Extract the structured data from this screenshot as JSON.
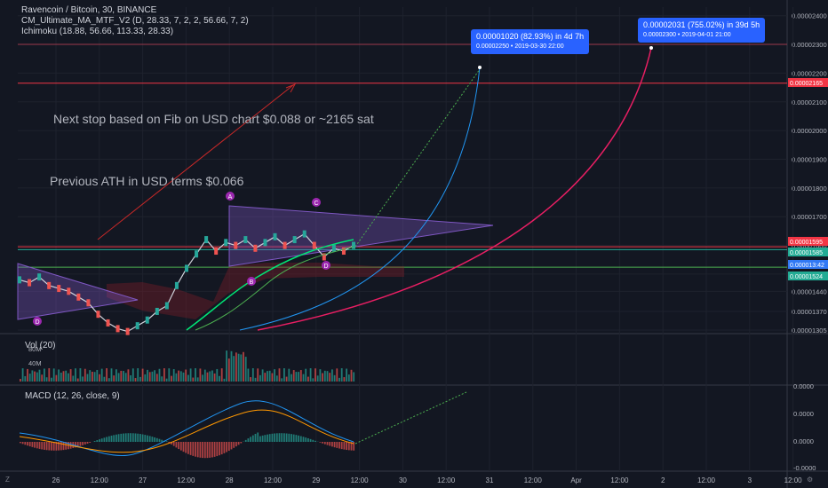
{
  "header": {
    "title": "Ravencoin / Bitcoin, 30, BINANCE",
    "indicator1": "CM_Ultimate_MA_MTF_V2 (D, 28.33, 7, 2, 2, 56.66, 7, 2)",
    "indicator2": "Ichimoku (18.88, 56.66, 113.33, 28.33)"
  },
  "annotations": {
    "next_stop": "Next stop based on Fib on USD chart $0.088 or ~2165 sat",
    "previous_ath": "Previous ATH in USD terms $0.066"
  },
  "pattern_points": [
    "A",
    "B",
    "C",
    "D",
    "D"
  ],
  "bubbles": [
    {
      "line1": "0.00001020 (82.93%) in 4d 7h",
      "line2": "0.00002250  •  2019-03-30  22:00"
    },
    {
      "line1": "0.00002031 (755.02%) in 39d 5h",
      "line2": "0.00002300  •  2019-04-01  21:00"
    }
  ],
  "price_tags": [
    {
      "text": "0.00002165",
      "color": "#f23645"
    },
    {
      "text": "0.00001595",
      "color": "#f23645"
    },
    {
      "text": "0.00001585",
      "color": "#22ab94"
    },
    {
      "text": "0.000013:42",
      "color": "#3179f5"
    },
    {
      "text": "0.00001524",
      "color": "#22ab94"
    }
  ],
  "vol_panel": {
    "label": "Vol (20)",
    "ticks": [
      "80M",
      "40M"
    ]
  },
  "macd_panel": {
    "label": "MACD (12, 26, close, 9)",
    "ticks": [
      "0.0000",
      "0.0000",
      "0.0000",
      "-0.0000"
    ]
  },
  "bottom_corner": {
    "left": "Z",
    "right": "⚙"
  },
  "chart_data": {
    "type": "line",
    "title": "Ravencoin / Bitcoin, 30, BINANCE",
    "y_axis_ticks": [
      "0.00002400",
      "0.00002300",
      "0.00002200",
      "0.00002100",
      "0.00002000",
      "0.00001900",
      "0.00001800",
      "0.00001700",
      "0.00001600",
      "0.00001500",
      "0.00001440",
      "0.00001370",
      "0.00001305"
    ],
    "x_axis_ticks": [
      "26",
      "12:00",
      "27",
      "12:00",
      "28",
      "12:00",
      "29",
      "12:00",
      "30",
      "12:00",
      "31",
      "12:00",
      "Apr",
      "12:00",
      "2",
      "12:00",
      "3",
      "12:00"
    ],
    "ylim": [
      1.305e-05,
      2.43e-05
    ],
    "series": [
      {
        "values": [
          1.48e-05,
          1.47e-05,
          1.49e-05,
          1.46e-05,
          1.45e-05,
          1.44e-05,
          1.42e-05,
          1.4e-05,
          1.36e-05,
          1.33e-05,
          1.31e-05,
          1.3e-05,
          1.32e-05,
          1.34e-05,
          1.37e-05,
          1.39e-05,
          1.46e-05,
          1.52e-05,
          1.57e-05,
          1.62e-05,
          1.58e-05,
          1.61e-05,
          1.6e-05,
          1.62e-05,
          1.59e-05,
          1.61e-05,
          1.63e-05,
          1.6e-05,
          1.62e-05,
          1.64e-05,
          1.6e-05,
          1.56e-05,
          1.59e-05,
          1.58e-05,
          1.6e-05
        ]
      }
    ],
    "horizontal_levels": [
      2.3e-05,
      2.165e-05,
      1.595e-05,
      1.585e-05,
      1.524e-05
    ],
    "grid": true,
    "legend": "none"
  }
}
